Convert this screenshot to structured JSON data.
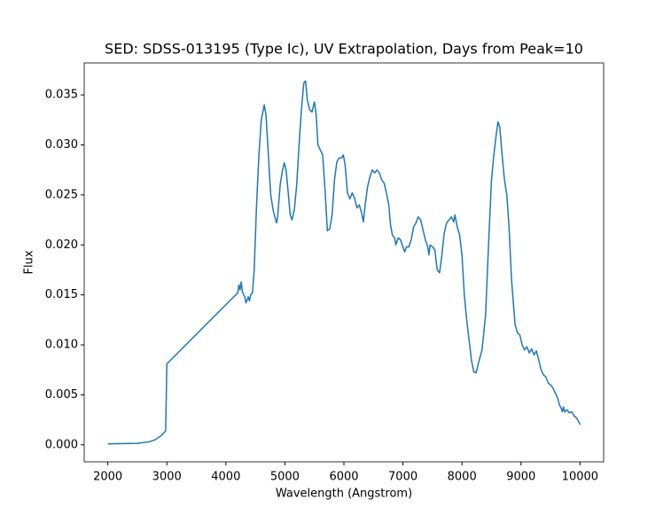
{
  "chart_data": {
    "type": "line",
    "title": "SED: SDSS-013195 (Type Ic), UV Extrapolation, Days from Peak=10",
    "x_label": "Wavelength (Angstrom)",
    "y_label": "Flux",
    "xlim": [
      1600,
      10400
    ],
    "ylim": [
      -0.0017,
      0.0382
    ],
    "xticks": [
      2000,
      3000,
      4000,
      5000,
      6000,
      7000,
      8000,
      9000,
      10000
    ],
    "yticks": [
      {
        "value": 0,
        "label": "0.000"
      },
      {
        "value": 0.005,
        "label": "0.005"
      },
      {
        "value": 0.01,
        "label": "0.010"
      },
      {
        "value": 0.015,
        "label": "0.015"
      },
      {
        "value": 0.02,
        "label": "0.020"
      },
      {
        "value": 0.025,
        "label": "0.025"
      },
      {
        "value": 0.03,
        "label": "0.030"
      },
      {
        "value": 0.035,
        "label": "0.035"
      }
    ],
    "grid": false,
    "x": [
      2000,
      2500,
      2700,
      2800,
      2900,
      2980,
      3000,
      4200,
      4220,
      4240,
      4260,
      4280,
      4320,
      4340,
      4380,
      4400,
      4420,
      4450,
      4480,
      4520,
      4560,
      4600,
      4650,
      4680,
      4720,
      4760,
      4800,
      4830,
      4860,
      4880,
      4920,
      4960,
      4990,
      5020,
      5060,
      5090,
      5120,
      5160,
      5200,
      5240,
      5280,
      5320,
      5350,
      5380,
      5420,
      5460,
      5500,
      5530,
      5560,
      5600,
      5640,
      5680,
      5720,
      5760,
      5800,
      5840,
      5880,
      5920,
      5960,
      5990,
      6020,
      6060,
      6100,
      6140,
      6180,
      6220,
      6260,
      6300,
      6330,
      6360,
      6400,
      6440,
      6480,
      6520,
      6560,
      6600,
      6640,
      6680,
      6720,
      6760,
      6790,
      6820,
      6860,
      6880,
      6920,
      6960,
      7000,
      7030,
      7060,
      7100,
      7140,
      7180,
      7220,
      7260,
      7300,
      7340,
      7380,
      7420,
      7440,
      7460,
      7500,
      7540,
      7580,
      7620,
      7660,
      7700,
      7740,
      7780,
      7820,
      7860,
      7880,
      7920,
      7960,
      8000,
      8040,
      8080,
      8120,
      8160,
      8200,
      8240,
      8280,
      8340,
      8400,
      8450,
      8500,
      8540,
      8580,
      8610,
      8640,
      8680,
      8720,
      8760,
      8800,
      8840,
      8880,
      8900,
      8940,
      8980,
      9020,
      9060,
      9100,
      9140,
      9180,
      9220,
      9260,
      9300,
      9340,
      9380,
      9420,
      9460,
      9500,
      9540,
      9580,
      9620,
      9650,
      9680,
      9700,
      9720,
      9740,
      9780,
      9820,
      9860,
      9900,
      9940,
      9980,
      10000
    ],
    "series": [
      {
        "name": "Flux",
        "color": "#1f77b4",
        "values": [
          0.0001,
          0.00015,
          0.0003,
          0.0005,
          0.0009,
          0.0014,
          0.0081,
          0.0152,
          0.016,
          0.0155,
          0.0163,
          0.0153,
          0.0148,
          0.0142,
          0.0148,
          0.0144,
          0.015,
          0.0152,
          0.0175,
          0.024,
          0.029,
          0.0325,
          0.034,
          0.033,
          0.029,
          0.025,
          0.0235,
          0.0228,
          0.0222,
          0.023,
          0.026,
          0.0275,
          0.0282,
          0.0275,
          0.025,
          0.023,
          0.0225,
          0.0235,
          0.026,
          0.03,
          0.0335,
          0.0362,
          0.0364,
          0.0345,
          0.0335,
          0.0333,
          0.0343,
          0.033,
          0.03,
          0.0295,
          0.029,
          0.0255,
          0.0214,
          0.0216,
          0.023,
          0.0265,
          0.0283,
          0.0287,
          0.0287,
          0.029,
          0.028,
          0.0252,
          0.0246,
          0.0252,
          0.0247,
          0.0237,
          0.024,
          0.0232,
          0.0223,
          0.024,
          0.0258,
          0.0268,
          0.0275,
          0.0272,
          0.0275,
          0.0272,
          0.0265,
          0.0262,
          0.0252,
          0.024,
          0.022,
          0.021,
          0.0207,
          0.02,
          0.0207,
          0.0205,
          0.0198,
          0.0193,
          0.0198,
          0.0198,
          0.0205,
          0.0218,
          0.0222,
          0.0228,
          0.0225,
          0.0215,
          0.0205,
          0.0198,
          0.019,
          0.02,
          0.0198,
          0.0195,
          0.0175,
          0.0172,
          0.019,
          0.0212,
          0.0222,
          0.0225,
          0.0228,
          0.0223,
          0.023,
          0.0218,
          0.021,
          0.019,
          0.015,
          0.0125,
          0.0105,
          0.0085,
          0.0073,
          0.0072,
          0.0082,
          0.0095,
          0.013,
          0.02,
          0.0265,
          0.029,
          0.031,
          0.0323,
          0.0318,
          0.029,
          0.0265,
          0.025,
          0.0215,
          0.0165,
          0.0135,
          0.012,
          0.0112,
          0.011,
          0.01,
          0.0095,
          0.0098,
          0.0092,
          0.0096,
          0.009,
          0.0094,
          0.0085,
          0.0075,
          0.007,
          0.0068,
          0.0062,
          0.006,
          0.0057,
          0.0052,
          0.0047,
          0.004,
          0.0037,
          0.0033,
          0.0038,
          0.0033,
          0.0035,
          0.0032,
          0.0033,
          0.0029,
          0.0027,
          0.0023,
          0.002
        ]
      }
    ]
  }
}
